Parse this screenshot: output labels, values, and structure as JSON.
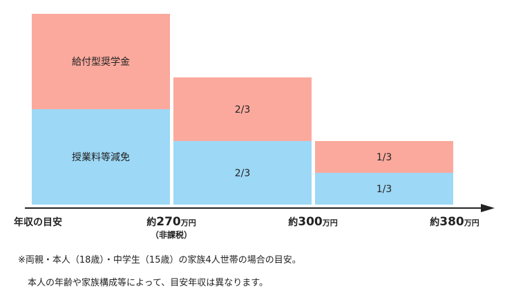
{
  "chart_data": {
    "type": "bar",
    "stacked": true,
    "categories": [
      "年収の目安〜約270万円",
      "約270万円〜約300万円",
      "約300万円〜約380万円"
    ],
    "series": [
      {
        "key": "tuition",
        "values": [
          1,
          0.6667,
          0.3333
        ],
        "labels": [
          "授業料等減免",
          "2/3",
          "1/3"
        ],
        "color": "#9dd8f6"
      },
      {
        "key": "scholarship",
        "values": [
          1,
          0.6667,
          0.3333
        ],
        "labels": [
          "給付型奨学金",
          "2/3",
          "1/3"
        ],
        "color": "#fba99d"
      }
    ],
    "x_axis": {
      "label": "年収の目安",
      "ticks": [
        {
          "prefix": "約",
          "num": "270",
          "unit": "万円",
          "sub": "（非課税）"
        },
        {
          "prefix": "約",
          "num": "300",
          "unit": "万円",
          "sub": ""
        },
        {
          "prefix": "約",
          "num": "380",
          "unit": "万円",
          "sub": ""
        }
      ]
    },
    "ylim": [
      0,
      2
    ]
  },
  "notes": {
    "line1": "※両親・本人（18歳）・中学生（15歳）の家族4人世帯の場合の目安。",
    "line2": "本人の年齢や家族構成等によって、目安年収は異なります。"
  }
}
